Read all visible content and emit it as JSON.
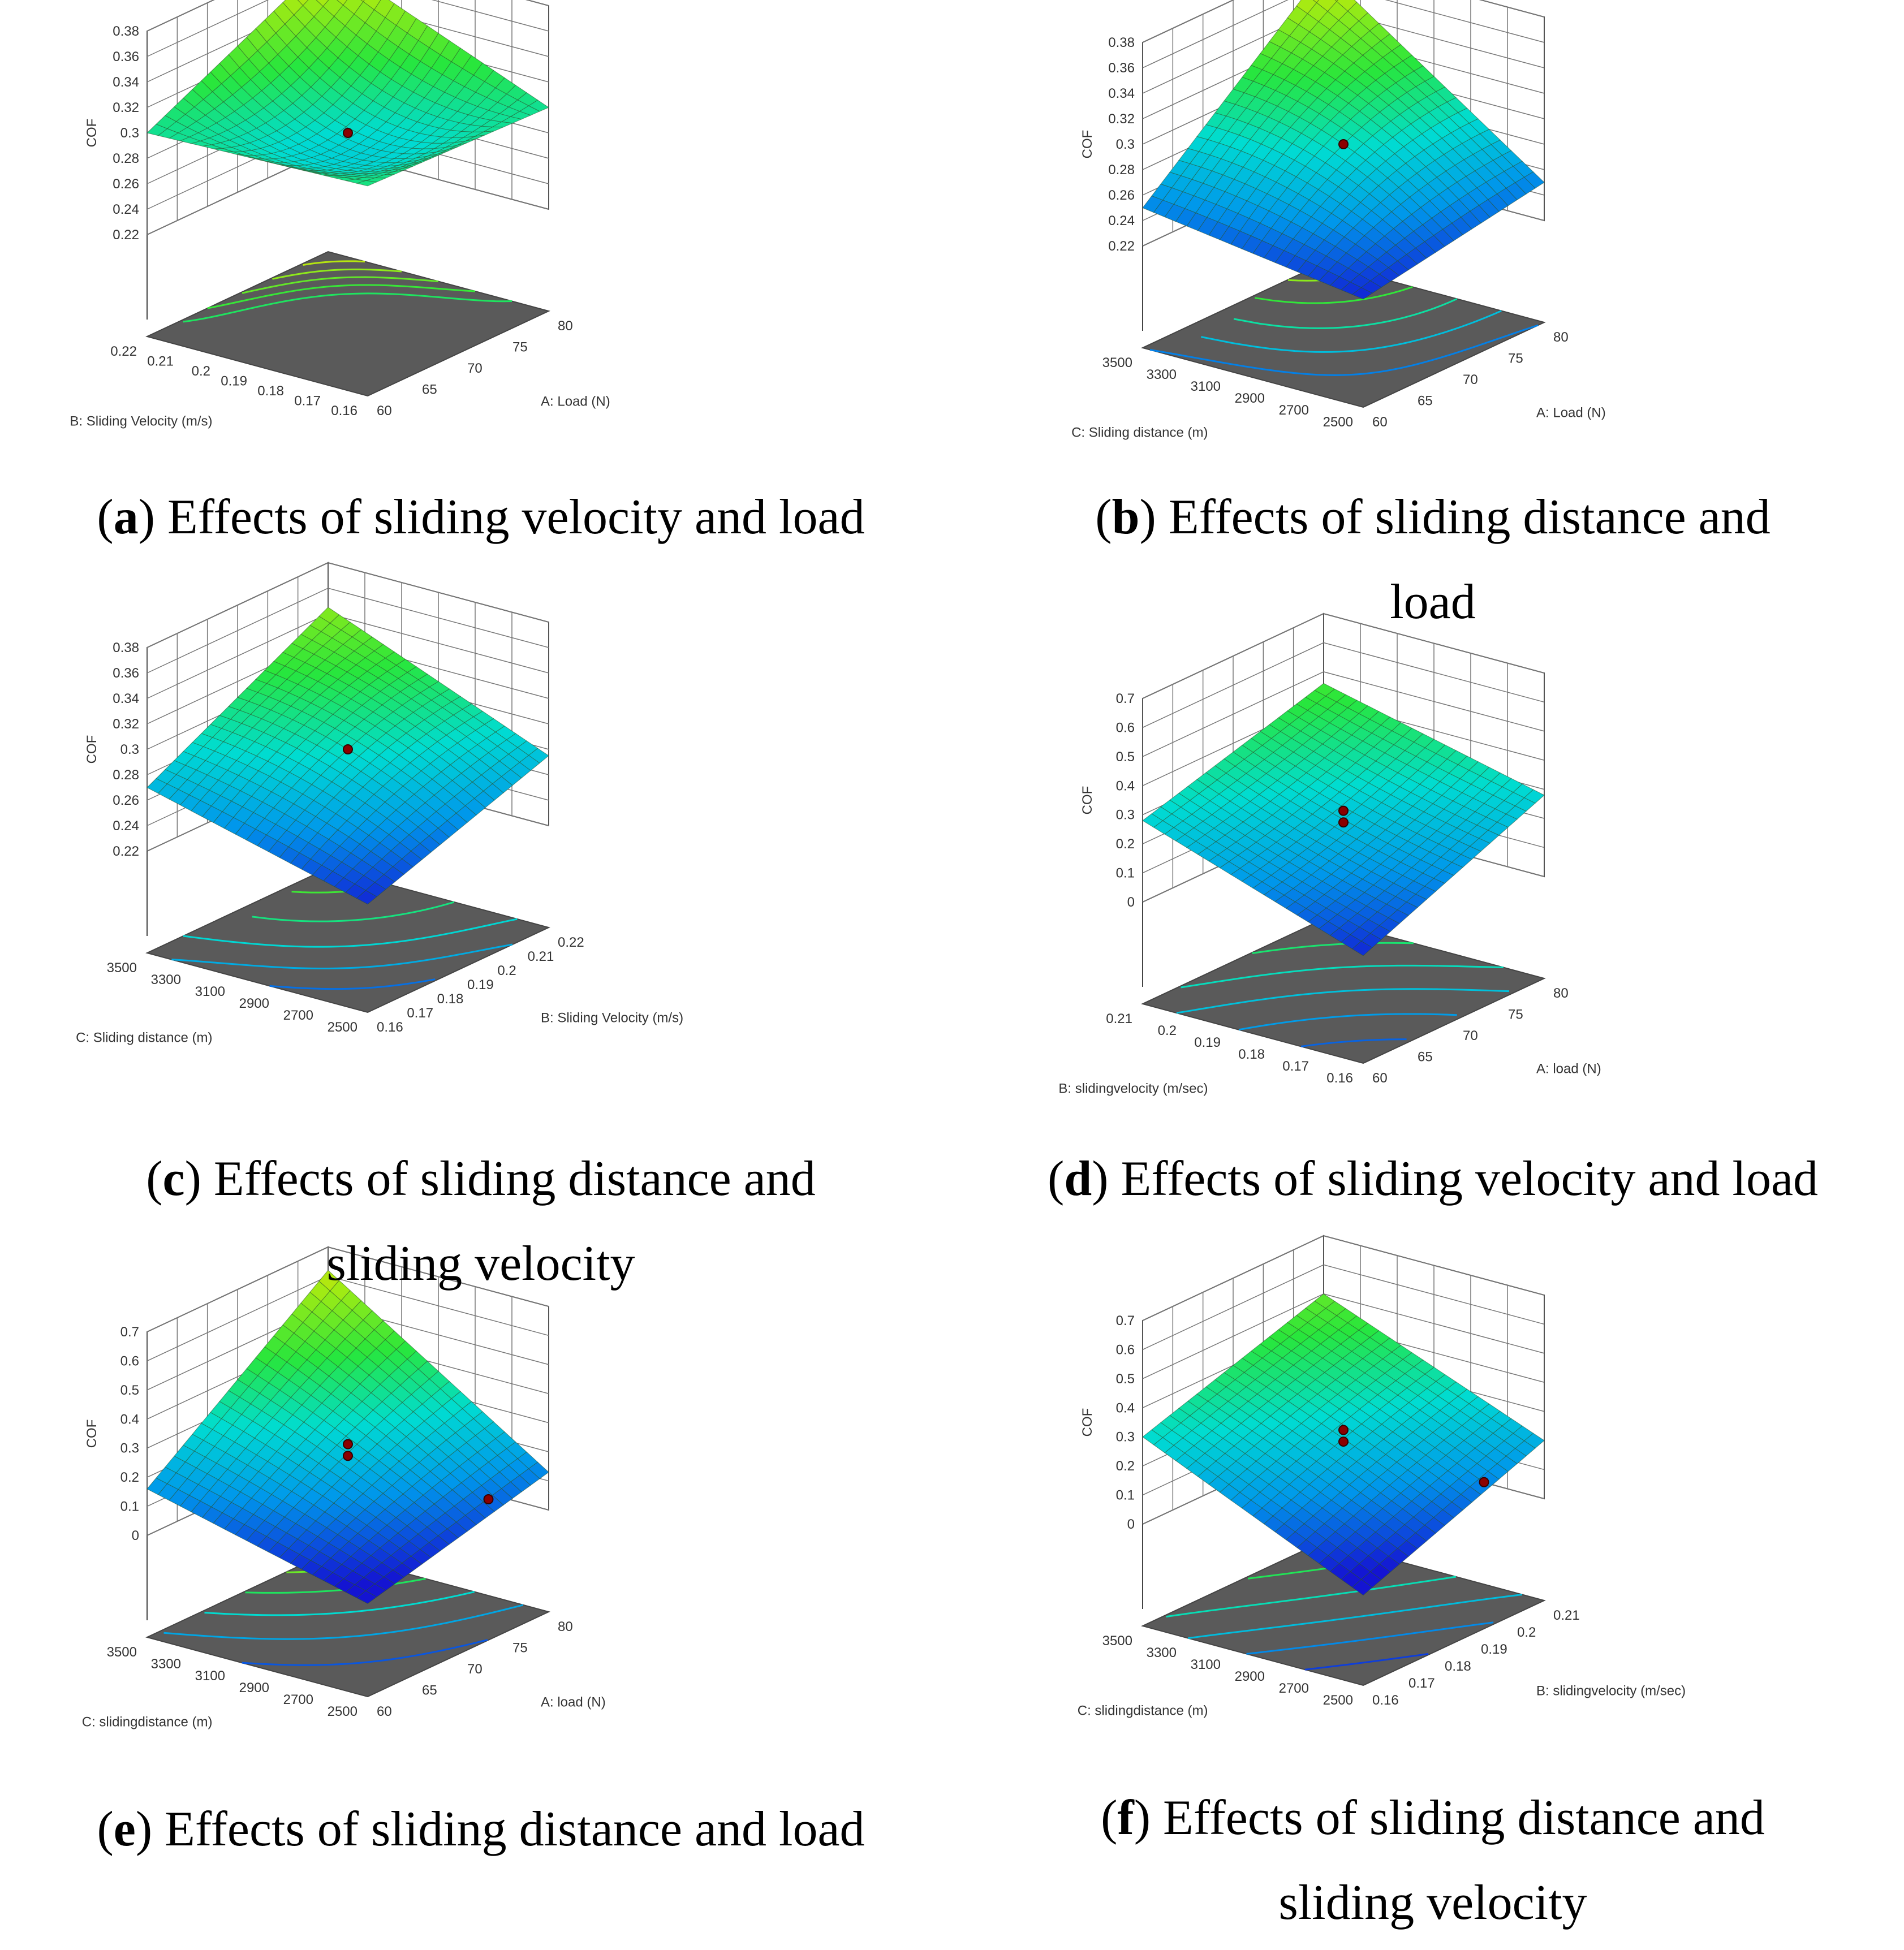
{
  "chart_data": [
    {
      "panel": "a",
      "type": "surface3d",
      "title": "Effects of sliding velocity and load",
      "zlabel": "COF",
      "z_ticks": [
        "0.22",
        "0.24",
        "0.26",
        "0.28",
        "0.3",
        "0.32",
        "0.34",
        "0.36",
        "0.38"
      ],
      "zlim": [
        0.22,
        0.38
      ],
      "x": {
        "label": "A: Load (N)",
        "ticks": [
          "60",
          "65",
          "70",
          "75",
          "80"
        ],
        "range": [
          60,
          80
        ]
      },
      "y": {
        "label": "B: Sliding Velocity (m/s)",
        "ticks": [
          "0.16",
          "0.17",
          "0.18",
          "0.19",
          "0.2",
          "0.21",
          "0.22"
        ],
        "range": [
          0.16,
          0.22
        ]
      },
      "corner_values": {
        "x0y0": 0.305,
        "x1y0": 0.3,
        "x0y1": 0.3,
        "x1y1": 0.37
      },
      "center_value": 0.285,
      "center_points": [
        0.29
      ]
    },
    {
      "panel": "b",
      "type": "surface3d",
      "title": "Effects of sliding distance and load",
      "zlabel": "COF",
      "z_ticks": [
        "0.22",
        "0.24",
        "0.26",
        "0.28",
        "0.3",
        "0.32",
        "0.34",
        "0.36",
        "0.38"
      ],
      "zlim": [
        0.22,
        0.38
      ],
      "x": {
        "label": "A: Load (N)",
        "ticks": [
          "60",
          "65",
          "70",
          "75",
          "80"
        ],
        "range": [
          60,
          80
        ]
      },
      "y": {
        "label": "C: Sliding distance (m)",
        "ticks": [
          "2500",
          "2700",
          "2900",
          "3100",
          "3300",
          "3500"
        ],
        "range": [
          2500,
          3500
        ]
      },
      "corner_values": {
        "x0y0": 0.225,
        "x1y0": 0.25,
        "x0y1": 0.25,
        "x1y1": 0.37
      },
      "center_value": 0.29,
      "center_points": [
        0.29
      ]
    },
    {
      "panel": "c",
      "type": "surface3d",
      "title": "Effects of sliding distance and sliding velocity",
      "zlabel": "COF",
      "z_ticks": [
        "0.22",
        "0.24",
        "0.26",
        "0.28",
        "0.3",
        "0.32",
        "0.34",
        "0.36",
        "0.38"
      ],
      "zlim": [
        0.22,
        0.38
      ],
      "x": {
        "label": "B: Sliding Velocity (m/s)",
        "ticks": [
          "0.16",
          "0.17",
          "0.18",
          "0.19",
          "0.2",
          "0.21",
          "0.22"
        ],
        "range": [
          0.16,
          0.22
        ]
      },
      "y": {
        "label": "C: Sliding distance (m)",
        "ticks": [
          "2500",
          "2700",
          "2900",
          "3100",
          "3300",
          "3500"
        ],
        "range": [
          2500,
          3500
        ]
      },
      "corner_values": {
        "x0y0": 0.225,
        "x1y0": 0.275,
        "x0y1": 0.27,
        "x1y1": 0.345
      },
      "center_value": 0.29,
      "center_points": [
        0.29
      ]
    },
    {
      "panel": "d",
      "type": "surface3d",
      "title": "Effects of sliding velocity and load",
      "zlabel": "COF",
      "z_ticks": [
        "0",
        "0.1",
        "0.2",
        "0.3",
        "0.4",
        "0.5",
        "0.6",
        "0.7"
      ],
      "zlim": [
        0,
        0.7
      ],
      "x": {
        "label": "A: load (N)",
        "ticks": [
          "60",
          "65",
          "70",
          "75",
          "80"
        ],
        "range": [
          60,
          80
        ]
      },
      "y": {
        "label": "B: slidingvelocity (m/sec)",
        "ticks": [
          "0.16",
          "0.17",
          "0.18",
          "0.19",
          "0.2",
          "0.21"
        ],
        "range": [
          0.16,
          0.21
        ]
      },
      "corner_values": {
        "x0y0": 0.02,
        "x1y0": 0.28,
        "x0y1": 0.28,
        "x1y1": 0.46
      },
      "center_value": 0.24,
      "center_points": [
        0.27,
        0.23
      ]
    },
    {
      "panel": "e",
      "type": "surface3d",
      "title": "Effects of sliding distance and load",
      "zlabel": "COF",
      "z_ticks": [
        "0",
        "0.1",
        "0.2",
        "0.3",
        "0.4",
        "0.5",
        "0.6",
        "0.7"
      ],
      "zlim": [
        0,
        0.7
      ],
      "x": {
        "label": "A: load (N)",
        "ticks": [
          "60",
          "65",
          "70",
          "75",
          "80"
        ],
        "range": [
          60,
          80
        ]
      },
      "y": {
        "label": "C: slidingdistance (m)",
        "ticks": [
          "2500",
          "2700",
          "2900",
          "3100",
          "3300",
          "3500"
        ],
        "range": [
          2500,
          3500
        ]
      },
      "corner_values": {
        "x0y0": -0.03,
        "x1y0": 0.13,
        "x0y1": 0.16,
        "x1y1": 0.62
      },
      "center_value": 0.24,
      "center_points": [
        0.27,
        0.23,
        0.05
      ]
    },
    {
      "panel": "f",
      "type": "surface3d",
      "title": "Effects of sliding distance and sliding velocity",
      "zlabel": "COF",
      "z_ticks": [
        "0",
        "0.1",
        "0.2",
        "0.3",
        "0.4",
        "0.5",
        "0.6",
        "0.7"
      ],
      "zlim": [
        0,
        0.7
      ],
      "x": {
        "label": "B: slidingvelocity (m/sec)",
        "ticks": [
          "0.16",
          "0.17",
          "0.18",
          "0.19",
          "0.2",
          "0.21"
        ],
        "range": [
          0.16,
          0.21
        ]
      },
      "y": {
        "label": "C: slidingdistance (m)",
        "ticks": [
          "2500",
          "2700",
          "2900",
          "3100",
          "3300",
          "3500"
        ],
        "range": [
          2500,
          3500
        ]
      },
      "corner_values": {
        "x0y0": -0.04,
        "x1y0": 0.2,
        "x0y1": 0.3,
        "x1y1": 0.5
      },
      "center_value": 0.25,
      "center_points": [
        0.28,
        0.24,
        0.07
      ]
    }
  ],
  "captions": [
    {
      "letter": "a",
      "lines": [
        "Effects of sliding velocity and load"
      ]
    },
    {
      "letter": "b",
      "lines": [
        "Effects of sliding distance and",
        "load"
      ]
    },
    {
      "letter": "c",
      "lines": [
        "Effects of sliding distance and",
        "sliding velocity"
      ]
    },
    {
      "letter": "d",
      "lines": [
        "Effects of sliding velocity and load"
      ]
    },
    {
      "letter": "e",
      "lines": [
        "Effects of sliding distance and load"
      ]
    },
    {
      "letter": "f",
      "lines": [
        "Effects of sliding distance and",
        "sliding velocity"
      ]
    }
  ]
}
